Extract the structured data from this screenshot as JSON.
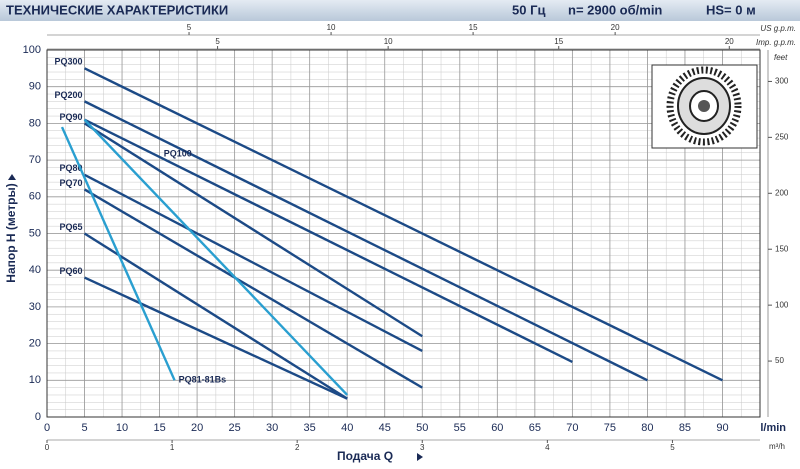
{
  "chart_data": {
    "type": "line",
    "title": "ТЕХНИЧЕСКИЕ ХАРАКТЕРИСТИКИ",
    "subtitle": [
      "50 Гц",
      "n= 2900 об/min",
      "HS= 0 м"
    ],
    "x_label": "Подача Q",
    "x_unit": "l/min",
    "y_label": "Напор H (метры)",
    "xlim": [
      0,
      95
    ],
    "xticks": [
      0,
      5,
      10,
      15,
      20,
      25,
      30,
      35,
      40,
      45,
      50,
      55,
      60,
      65,
      70,
      75,
      80,
      85,
      90
    ],
    "ylim": [
      0,
      100
    ],
    "yticks": [
      0,
      10,
      20,
      30,
      40,
      50,
      60,
      70,
      80,
      90,
      100
    ],
    "grid": true,
    "top_axis_us": {
      "label": "US g.p.m.",
      "lim": [
        0,
        25.1
      ],
      "ticks": [
        5,
        10,
        15,
        20
      ]
    },
    "top_axis_imp": {
      "label": "Imp. g.p.m.",
      "lim": [
        0,
        20.9
      ],
      "ticks": [
        5,
        10,
        15,
        20
      ]
    },
    "bottom_axis_m3h": {
      "label": "m³/h",
      "lim": [
        0,
        5.7
      ],
      "ticks": [
        0,
        1,
        2,
        3,
        4,
        5
      ]
    },
    "right_axis": {
      "label": "feet",
      "lim": [
        0,
        328.1
      ],
      "ticks": [
        50,
        100,
        150,
        200,
        250,
        300
      ]
    },
    "series": [
      {
        "name": "PQ300",
        "color": "#1c4a86",
        "x": [
          5,
          90
        ],
        "values": [
          95,
          10
        ]
      },
      {
        "name": "PQ200",
        "color": "#1c4a86",
        "x": [
          5,
          80
        ],
        "values": [
          86,
          10
        ]
      },
      {
        "name": "PQ100",
        "color": "#1c4a86",
        "x": [
          5,
          70
        ],
        "values": [
          81,
          15
        ]
      },
      {
        "name": "PQ90",
        "color": "#1c4a86",
        "x": [
          5,
          50
        ],
        "values": [
          80,
          22
        ]
      },
      {
        "name": "PQ80",
        "color": "#1c4a86",
        "x": [
          5,
          50
        ],
        "values": [
          66,
          18
        ]
      },
      {
        "name": "PQ70",
        "color": "#1c4a86",
        "x": [
          5,
          50
        ],
        "values": [
          62,
          8
        ]
      },
      {
        "name": "PQ65",
        "color": "#1c4a86",
        "x": [
          5,
          40
        ],
        "values": [
          50,
          5
        ]
      },
      {
        "name": "PQ60",
        "color": "#1c4a86",
        "x": [
          5,
          40
        ],
        "values": [
          38,
          5
        ]
      },
      {
        "name": "PQ81-81Bs",
        "color": "#2a9fd0",
        "x": [
          2,
          17
        ],
        "values": [
          79,
          10
        ]
      },
      {
        "color": "#2a9fd0",
        "x": [
          5,
          40
        ],
        "values": [
          81,
          6
        ]
      }
    ]
  }
}
